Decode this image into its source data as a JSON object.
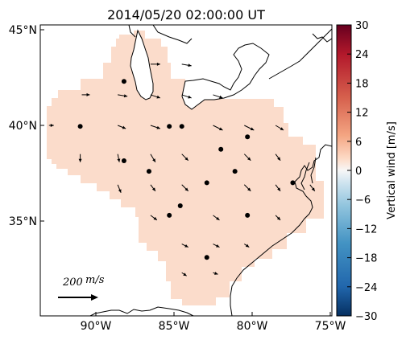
{
  "title": "2014/05/20 02:00:00 UT",
  "colors": {
    "field_fill": "#fbdccb",
    "coast": "#000000",
    "arrow": "#000000"
  },
  "axes": {
    "lon_ticks": [
      {
        "value": -90,
        "label": "90°W"
      },
      {
        "value": -85,
        "label": "85°W"
      },
      {
        "value": -80,
        "label": "80°W"
      },
      {
        "value": -75,
        "label": "75°W"
      }
    ],
    "lat_ticks": [
      {
        "value": 45,
        "label": "45°N"
      },
      {
        "value": 40,
        "label": "40°N"
      },
      {
        "value": 35,
        "label": "35°N"
      }
    ]
  },
  "colorbar": {
    "label": "Vertical wind [m/s]",
    "min": -30,
    "max": 30,
    "colormap": "red-white-blue (RdBu_r)",
    "ticks": [
      {
        "value": 30,
        "label": "30"
      },
      {
        "value": 24,
        "label": "24"
      },
      {
        "value": 18,
        "label": "18"
      },
      {
        "value": 12,
        "label": "12"
      },
      {
        "value": 6,
        "label": "6"
      },
      {
        "value": 0,
        "label": "0"
      },
      {
        "value": -6,
        "label": "−6"
      },
      {
        "value": -12,
        "label": "−12"
      },
      {
        "value": -18,
        "label": "−18"
      },
      {
        "value": -24,
        "label": "−24"
      },
      {
        "value": -30,
        "label": "−30"
      }
    ]
  },
  "scale": {
    "label_value": "200",
    "label_unit": "m/s"
  },
  "stations": [
    {
      "lon": -88.2,
      "lat": 42.3
    },
    {
      "lon": -91.0,
      "lat": 39.95
    },
    {
      "lon": -85.3,
      "lat": 39.95
    },
    {
      "lon": -84.5,
      "lat": 39.95
    },
    {
      "lon": -80.3,
      "lat": 39.4
    },
    {
      "lon": -82.0,
      "lat": 38.75
    },
    {
      "lon": -88.2,
      "lat": 38.15
    },
    {
      "lon": -86.6,
      "lat": 37.6
    },
    {
      "lon": -81.1,
      "lat": 37.6
    },
    {
      "lon": -82.9,
      "lat": 37.0
    },
    {
      "lon": -77.4,
      "lat": 37.0
    },
    {
      "lon": -84.6,
      "lat": 35.8
    },
    {
      "lon": -85.3,
      "lat": 35.3
    },
    {
      "lon": -80.3,
      "lat": 35.3
    },
    {
      "lon": -82.9,
      "lat": 33.1
    }
  ],
  "arrows": [
    {
      "lon": -86.5,
      "lat": 43.2,
      "dx": 0.6,
      "dy": 0.0
    },
    {
      "lon": -84.5,
      "lat": 43.2,
      "dx": 0.6,
      "dy": -0.1
    },
    {
      "lon": -90.9,
      "lat": 41.6,
      "dx": 0.5,
      "dy": 0.0
    },
    {
      "lon": -88.6,
      "lat": 41.6,
      "dx": 0.6,
      "dy": -0.1
    },
    {
      "lon": -86.5,
      "lat": 41.6,
      "dx": 0.6,
      "dy": -0.2
    },
    {
      "lon": -84.5,
      "lat": 41.6,
      "dx": 0.6,
      "dy": -0.2
    },
    {
      "lon": -82.5,
      "lat": 41.6,
      "dx": 0.6,
      "dy": -0.2
    },
    {
      "lon": -93.0,
      "lat": 40.0,
      "dx": 0.3,
      "dy": 0.0
    },
    {
      "lon": -88.6,
      "lat": 40.0,
      "dx": 0.5,
      "dy": -0.2
    },
    {
      "lon": -86.5,
      "lat": 40.0,
      "dx": 0.6,
      "dy": -0.2
    },
    {
      "lon": -82.5,
      "lat": 40.0,
      "dx": 0.6,
      "dy": -0.3
    },
    {
      "lon": -80.5,
      "lat": 40.0,
      "dx": 0.6,
      "dy": -0.3
    },
    {
      "lon": -78.5,
      "lat": 40.0,
      "dx": 0.5,
      "dy": -0.3
    },
    {
      "lon": -91.0,
      "lat": 38.5,
      "dx": 0.0,
      "dy": -0.5
    },
    {
      "lon": -88.6,
      "lat": 38.5,
      "dx": 0.1,
      "dy": -0.5
    },
    {
      "lon": -86.5,
      "lat": 38.5,
      "dx": 0.3,
      "dy": -0.5
    },
    {
      "lon": -84.5,
      "lat": 38.5,
      "dx": 0.4,
      "dy": -0.4
    },
    {
      "lon": -80.5,
      "lat": 38.5,
      "dx": 0.4,
      "dy": -0.4
    },
    {
      "lon": -78.5,
      "lat": 38.5,
      "dx": 0.3,
      "dy": -0.4
    },
    {
      "lon": -88.6,
      "lat": 36.9,
      "dx": 0.2,
      "dy": -0.5
    },
    {
      "lon": -86.5,
      "lat": 36.9,
      "dx": 0.3,
      "dy": -0.4
    },
    {
      "lon": -84.5,
      "lat": 36.9,
      "dx": 0.4,
      "dy": -0.4
    },
    {
      "lon": -80.5,
      "lat": 36.9,
      "dx": 0.4,
      "dy": -0.4
    },
    {
      "lon": -78.5,
      "lat": 36.9,
      "dx": 0.3,
      "dy": -0.4
    },
    {
      "lon": -76.3,
      "lat": 36.9,
      "dx": 0.3,
      "dy": -0.4
    },
    {
      "lon": -86.5,
      "lat": 35.3,
      "dx": 0.4,
      "dy": -0.3
    },
    {
      "lon": -82.5,
      "lat": 35.3,
      "dx": 0.4,
      "dy": -0.3
    },
    {
      "lon": -78.5,
      "lat": 35.3,
      "dx": 0.3,
      "dy": -0.3
    },
    {
      "lon": -84.5,
      "lat": 33.8,
      "dx": 0.4,
      "dy": -0.2
    },
    {
      "lon": -82.5,
      "lat": 33.8,
      "dx": 0.4,
      "dy": -0.2
    },
    {
      "lon": -80.5,
      "lat": 33.8,
      "dx": 0.3,
      "dy": -0.2
    },
    {
      "lon": -84.5,
      "lat": 32.3,
      "dx": 0.3,
      "dy": -0.2
    },
    {
      "lon": -82.5,
      "lat": 32.3,
      "dx": 0.3,
      "dy": -0.1
    }
  ]
}
